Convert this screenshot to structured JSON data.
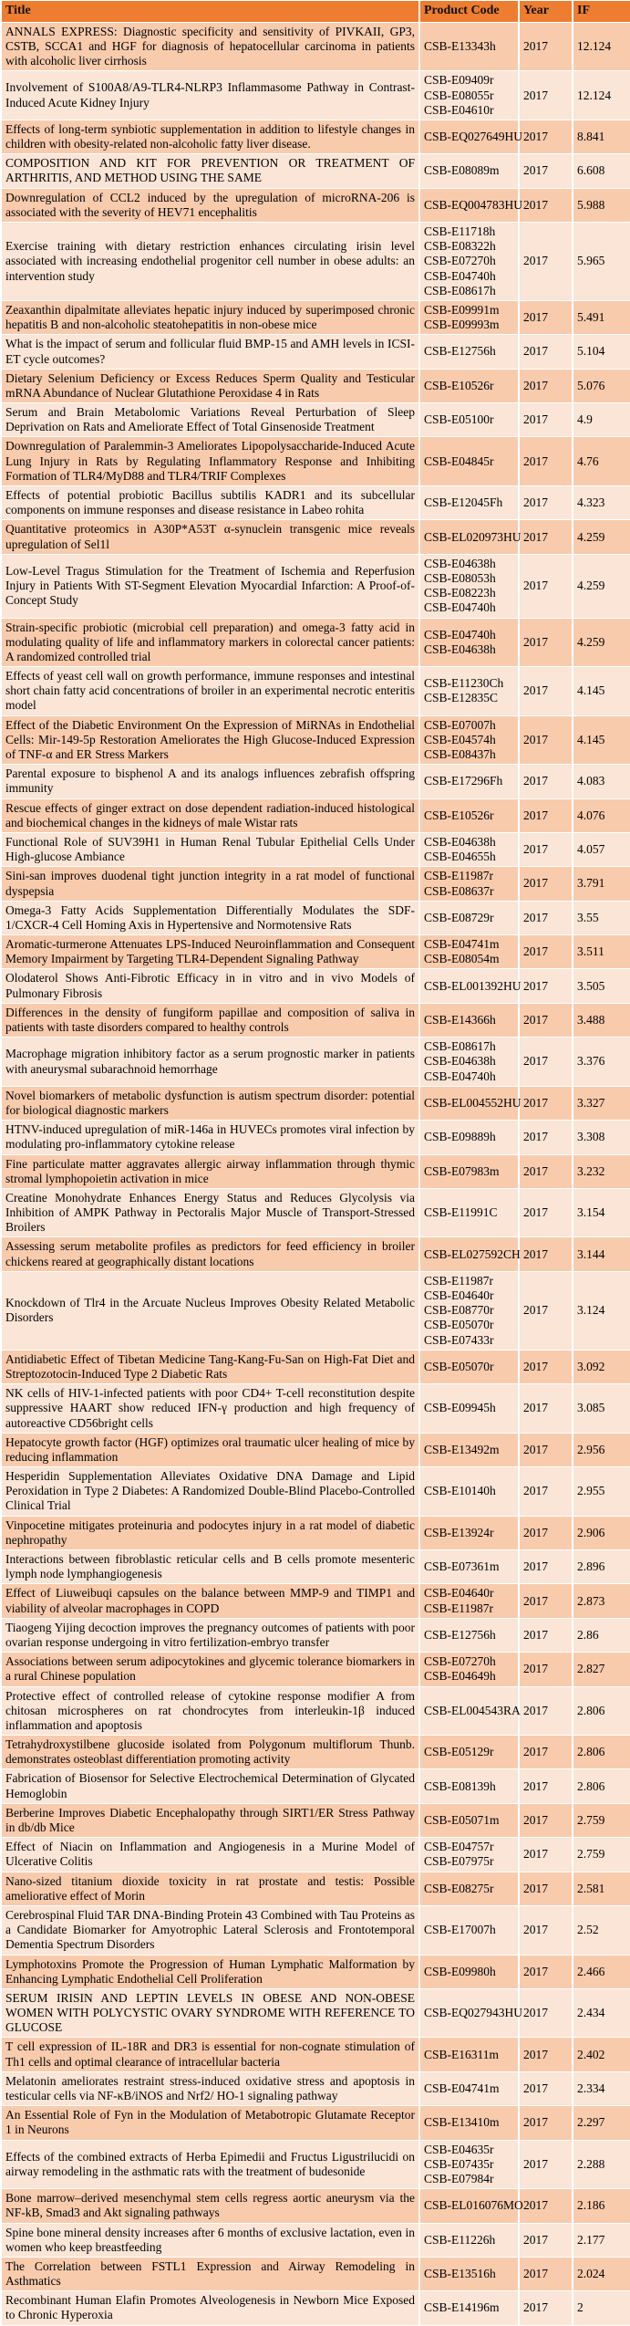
{
  "colors": {
    "header_bg": "#ED7D31",
    "row_odd_bg": "#F8CBAD",
    "row_even_bg": "#FBE5D6",
    "border": "#FFFFFF",
    "text": "#000000"
  },
  "table": {
    "columns": [
      "Title",
      "Product Code",
      "Year",
      "IF"
    ],
    "rows": [
      {
        "title": "ANNALS EXPRESS: Diagnostic specificity and sensitivity of PIVKAII, GP3, CSTB, SCCA1 and HGF for diagnosis of hepatocellular carcinoma in patients with alcoholic liver cirrhosis",
        "codes": [
          "CSB-E13343h"
        ],
        "year": "2017",
        "if": "12.124"
      },
      {
        "title": "Involvement of S100A8/A9-TLR4-NLRP3 Inflammasome Pathway in Contrast-Induced Acute Kidney Injury",
        "codes": [
          "CSB-E09409r",
          "CSB-E08055r",
          "CSB-E04610r"
        ],
        "year": "2017",
        "if": "12.124"
      },
      {
        "title": "Effects of long-term synbiotic supplementation in addition to lifestyle changes in children with obesity-related non-alcoholic fatty liver disease.",
        "codes": [
          "CSB-EQ027649HU"
        ],
        "year": "2017",
        "if": "8.841"
      },
      {
        "title": "COMPOSITION AND KIT FOR PREVENTION OR TREATMENT OF ARTHRITIS, AND METHOD USING THE SAME",
        "codes": [
          "CSB-E08089m"
        ],
        "year": "2017",
        "if": "6.608"
      },
      {
        "title": "Downregulation of CCL2 induced by the upregulation of microRNA-206 is associated with the severity of HEV71 encephalitis",
        "codes": [
          "CSB-EQ004783HU"
        ],
        "year": "2017",
        "if": "5.988"
      },
      {
        "title": "Exercise training with dietary restriction enhances circulating irisin level associated with increasing endothelial progenitor cell number in obese adults: an intervention study",
        "codes": [
          "CSB-E11718h",
          "CSB-E08322h",
          "CSB-E07270h",
          "CSB-E04740h",
          "CSB-E08617h"
        ],
        "year": "2017",
        "if": "5.965"
      },
      {
        "title": "Zeaxanthin dipalmitate alleviates hepatic injury induced by superimposed chronic hepatitis B and non-alcoholic steatohepatitis in non-obese mice",
        "codes": [
          "CSB-E09991m",
          "CSB-E09993m"
        ],
        "year": "2017",
        "if": "5.491"
      },
      {
        "title": "What is the impact of serum and follicular fluid BMP-15 and AMH levels in ICSI-ET cycle outcomes?",
        "codes": [
          "CSB-E12756h"
        ],
        "year": "2017",
        "if": "5.104"
      },
      {
        "title": "Dietary Selenium Deficiency or Excess Reduces Sperm Quality and Testicular mRNA Abundance of Nuclear Glutathione Peroxidase 4 in Rats",
        "codes": [
          "CSB-E10526r"
        ],
        "year": "2017",
        "if": "5.076"
      },
      {
        "title": "Serum and Brain Metabolomic Variations Reveal Perturbation of Sleep Deprivation on Rats and Ameliorate Effect of Total Ginsenoside Treatment",
        "codes": [
          "CSB-E05100r"
        ],
        "year": "2017",
        "if": "4.9"
      },
      {
        "title": "Downregulation of Paralemmin-3 Ameliorates Lipopolysaccharide-Induced Acute Lung Injury in Rats by Regulating Inflammatory Response and Inhibiting Formation of TLR4/MyD88 and TLR4/TRIF Complexes",
        "codes": [
          "CSB-E04845r"
        ],
        "year": "2017",
        "if": "4.76"
      },
      {
        "title": "Effects of potential probiotic Bacillus subtilis KADR1 and its subcellular components on immune responses and disease resistance in Labeo rohita",
        "codes": [
          "CSB-E12045Fh"
        ],
        "year": "2017",
        "if": "4.323"
      },
      {
        "title": "Quantitative proteomics in A30P*A53T α-synuclein transgenic mice reveals upregulation of Sel1l",
        "codes": [
          "CSB-EL020973HU"
        ],
        "year": "2017",
        "if": "4.259"
      },
      {
        "title": "Low-Level Tragus Stimulation for the Treatment of Ischemia and Reperfusion Injury in Patients With ST-Segment Elevation Myocardial Infarction: A Proof-of-Concept Study",
        "codes": [
          "CSB-E04638h",
          "CSB-E08053h",
          "CSB-E08223h",
          "CSB-E04740h"
        ],
        "year": "2017",
        "if": "4.259"
      },
      {
        "title": "Strain-specific probiotic (microbial cell preparation) and omega-3 fatty acid in modulating quality of life and inflammatory markers in colorectal cancer patients: A randomized controlled trial",
        "codes": [
          "CSB-E04740h",
          "CSB-E04638h"
        ],
        "year": "2017",
        "if": "4.259"
      },
      {
        "title": "Effects of yeast cell wall on growth performance, immune responses and intestinal short chain fatty acid concentrations of broiler in an experimental necrotic enteritis model",
        "codes": [
          "CSB-E11230Ch",
          "CSB-E12835C"
        ],
        "year": "2017",
        "if": "4.145"
      },
      {
        "title": "Effect of the Diabetic Environment On the Expression of MiRNAs in Endothelial Cells: Mir-149-5p Restoration Ameliorates the High Glucose-Induced Expression of TNF-α and ER Stress Markers",
        "codes": [
          "CSB-E07007h",
          "CSB-E04574h",
          "CSB-E08437h"
        ],
        "year": "2017",
        "if": "4.145"
      },
      {
        "title": "Parental exposure to bisphenol A and its analogs influences zebrafish offspring immunity",
        "codes": [
          "CSB-E17296Fh"
        ],
        "year": "2017",
        "if": "4.083"
      },
      {
        "title": "Rescue effects of ginger extract on dose dependent radiation-induced histological and biochemical changes in the kidneys of male Wistar rats",
        "codes": [
          "CSB-E10526r"
        ],
        "year": "2017",
        "if": "4.076"
      },
      {
        "title": "Functional Role of SUV39H1 in Human Renal Tubular Epithelial Cells Under High-glucose Ambiance",
        "codes": [
          "CSB-E04638h",
          "CSB-E04655h"
        ],
        "year": "2017",
        "if": "4.057"
      },
      {
        "title": "Sini-san improves duodenal tight junction integrity in a rat model of functional dyspepsia",
        "codes": [
          "CSB-E11987r",
          "CSB-E08637r"
        ],
        "year": "2017",
        "if": "3.791"
      },
      {
        "title": "Omega-3 Fatty Acids Supplementation Differentially Modulates the SDF-1/CXCR-4 Cell Homing Axis in Hypertensive and Normotensive Rats",
        "codes": [
          "CSB-E08729r"
        ],
        "year": "2017",
        "if": "3.55"
      },
      {
        "title": "Aromatic-turmerone Attenuates LPS-Induced Neuroinflammation and Consequent Memory Impairment by Targeting TLR4-Dependent Signaling Pathway",
        "codes": [
          "CSB-E04741m",
          "CSB-E08054m"
        ],
        "year": "2017",
        "if": "3.511"
      },
      {
        "title": "Olodaterol Shows Anti-Fibrotic Efficacy in in vitro and in vivo Models of Pulmonary Fibrosis",
        "codes": [
          "CSB-EL001392HU"
        ],
        "year": "2017",
        "if": "3.505"
      },
      {
        "title": "Differences in the density of fungiform papillae and composition of saliva in patients with taste disorders compared to healthy controls",
        "codes": [
          "CSB-E14366h"
        ],
        "year": "2017",
        "if": "3.488"
      },
      {
        "title": "Macrophage migration inhibitory factor as a serum prognostic marker in patients with aneurysmal subarachnoid hemorrhage",
        "codes": [
          "CSB-E08617h",
          "CSB-E04638h",
          "CSB-E04740h"
        ],
        "year": "2017",
        "if": "3.376"
      },
      {
        "title": "Novel biomarkers of metabolic dysfunction is autism spectrum disorder: potential for biological diagnostic markers",
        "codes": [
          "CSB-EL004552HU"
        ],
        "year": "2017",
        "if": "3.327"
      },
      {
        "title": "HTNV-induced upregulation of miR-146a in HUVECs promotes viral infection by modulating pro-inflammatory cytokine release",
        "codes": [
          "CSB-E09889h"
        ],
        "year": "2017",
        "if": "3.308"
      },
      {
        "title": "Fine particulate matter aggravates allergic airway inflammation through thymic stromal lymphopoietin activation in mice",
        "codes": [
          "CSB-E07983m"
        ],
        "year": "2017",
        "if": "3.232"
      },
      {
        "title": "Creatine Monohydrate Enhances Energy Status and Reduces Glycolysis via Inhibition of AMPK Pathway in Pectoralis Major Muscle of Transport-Stressed Broilers",
        "codes": [
          "CSB-E11991C"
        ],
        "year": "2017",
        "if": "3.154"
      },
      {
        "title": "Assessing serum metabolite profiles as predictors for feed efficiency in broiler chickens reared at geographically distant locations",
        "codes": [
          "CSB-EL027592CH"
        ],
        "year": "2017",
        "if": "3.144"
      },
      {
        "title": "Knockdown of Tlr4 in the Arcuate Nucleus Improves Obesity Related Metabolic Disorders",
        "codes": [
          "CSB-E11987r",
          "CSB-E04640r",
          "CSB-E08770r",
          "CSB-E05070r",
          "CSB-E07433r"
        ],
        "year": "2017",
        "if": "3.124"
      },
      {
        "title": "Antidiabetic Effect of Tibetan Medicine Tang-Kang-Fu-San on High-Fat Diet and Streptozotocin-Induced Type 2 Diabetic Rats",
        "codes": [
          "CSB-E05070r"
        ],
        "year": "2017",
        "if": "3.092"
      },
      {
        "title": "NK cells of HIV-1-infected patients with poor CD4+ T-cell reconstitution despite suppressive HAART show reduced IFN-γ production and high frequency of autoreactive CD56bright cells",
        "codes": [
          "CSB-E09945h"
        ],
        "year": "2017",
        "if": "3.085"
      },
      {
        "title": "Hepatocyte growth factor (HGF) optimizes oral traumatic ulcer healing of mice by reducing inflammation",
        "codes": [
          "CSB-E13492m"
        ],
        "year": "2017",
        "if": "2.956"
      },
      {
        "title": "Hesperidin Supplementation Alleviates Oxidative DNA Damage and Lipid Peroxidation in Type 2 Diabetes: A Randomized Double-Blind Placebo-Controlled Clinical Trial",
        "codes": [
          "CSB-E10140h"
        ],
        "year": "2017",
        "if": "2.955"
      },
      {
        "title": "Vinpocetine mitigates proteinuria and podocytes injury in a rat model of diabetic nephropathy",
        "codes": [
          "CSB-E13924r"
        ],
        "year": "2017",
        "if": "2.906"
      },
      {
        "title": "Interactions between fibroblastic reticular cells and B cells promote mesenteric lymph node lymphangiogenesis",
        "codes": [
          "CSB-E07361m"
        ],
        "year": "2017",
        "if": "2.896"
      },
      {
        "title": "Effect of Liuweibuqi capsules on the balance between MMP-9 and TIMP1 and viability of alveolar macrophages in COPD",
        "codes": [
          "CSB-E04640r",
          "CSB-E11987r"
        ],
        "year": "2017",
        "if": "2.873"
      },
      {
        "title": "Tiaogeng Yijing decoction improves the pregnancy outcomes of patients with poor ovarian response undergoing in vitro fertilization-embryo transfer",
        "codes": [
          "CSB-E12756h"
        ],
        "year": "2017",
        "if": "2.86"
      },
      {
        "title": "Associations between serum adipocytokines and glycemic tolerance biomarkers in a rural Chinese population",
        "codes": [
          "CSB-E07270h",
          "CSB-E04649h"
        ],
        "year": "2017",
        "if": "2.827"
      },
      {
        "title": "Protective effect of controlled release of cytokine response modifier A from chitosan microspheres on rat chondrocytes from interleukin-1β induced inflammation and apoptosis",
        "codes": [
          "CSB-EL004543RA"
        ],
        "year": "2017",
        "if": "2.806"
      },
      {
        "title": "Tetrahydroxystilbene glucoside isolated from Polygonum multiflorum Thunb. demonstrates osteoblast differentiation promoting activity",
        "codes": [
          "CSB-E05129r"
        ],
        "year": "2017",
        "if": "2.806"
      },
      {
        "title": "Fabrication of Biosensor for Selective Electrochemical Determination of Glycated Hemoglobin",
        "codes": [
          "CSB-E08139h"
        ],
        "year": "2017",
        "if": "2.806"
      },
      {
        "title": "Berberine Improves Diabetic Encephalopathy through SIRT1/ER Stress Pathway in db/db Mice",
        "codes": [
          "CSB-E05071m"
        ],
        "year": "2017",
        "if": "2.759"
      },
      {
        "title": "Effect of Niacin on Inflammation and Angiogenesis in a Murine Model of Ulcerative Colitis",
        "codes": [
          "CSB-E04757r",
          "CSB-E07975r"
        ],
        "year": "2017",
        "if": "2.759"
      },
      {
        "title": "Nano-sized titanium dioxide toxicity in rat prostate and testis: Possible ameliorative effect of Morin",
        "codes": [
          "CSB-E08275r"
        ],
        "year": "2017",
        "if": "2.581"
      },
      {
        "title": "Cerebrospinal Fluid TAR DNA-Binding Protein 43 Combined with Tau Proteins as a Candidate Biomarker for Amyotrophic Lateral Sclerosis and Frontotemporal Dementia Spectrum Disorders",
        "codes": [
          "CSB-E17007h"
        ],
        "year": "2017",
        "if": "2.52"
      },
      {
        "title": "Lymphotoxins Promote the Progression of Human Lymphatic Malformation by Enhancing Lymphatic Endothelial Cell Proliferation",
        "codes": [
          "CSB-E09980h"
        ],
        "year": "2017",
        "if": "2.466"
      },
      {
        "title": "SERUM IRISIN AND LEPTIN LEVELS IN OBESE AND NON-OBESE WOMEN WITH POLYCYSTIC OVARY SYNDROME WITH REFERENCE TO GLUCOSE",
        "codes": [
          "CSB-EQ027943HU"
        ],
        "year": "2017",
        "if": "2.434"
      },
      {
        "title": "T cell expression of IL-18R and DR3 is essential for non-cognate stimulation of Th1 cells and optimal clearance of intracellular bacteria",
        "codes": [
          "CSB-E16311m"
        ],
        "year": "2017",
        "if": "2.402"
      },
      {
        "title": "Melatonin ameliorates restraint stress-induced oxidative stress and apoptosis in testicular cells via NF-κB/iNOS and Nrf2/ HO-1 signaling pathway",
        "codes": [
          "CSB-E04741m"
        ],
        "year": "2017",
        "if": "2.334"
      },
      {
        "title": "An Essential Role of Fyn in the Modulation of Metabotropic Glutamate Receptor 1 in Neurons",
        "codes": [
          "CSB-E13410m"
        ],
        "year": "2017",
        "if": "2.297"
      },
      {
        "title": "Effects of the combined extracts of Herba Epimedii and Fructus Ligustrilucidi on airway remodeling in the asthmatic rats with the treatment of budesonide",
        "codes": [
          "CSB-E04635r",
          "CSB-E07435r",
          "CSB-E07984r"
        ],
        "year": "2017",
        "if": "2.288"
      },
      {
        "title": "Bone marrow–derived mesenchymal stem cells regress aortic aneurysm via the NF-kB, Smad3 and Akt signaling pathways",
        "codes": [
          "CSB-EL016076MO"
        ],
        "year": "2017",
        "if": "2.186"
      },
      {
        "title": "Spine bone mineral density increases after 6 months of exclusive lactation, even in women who keep breastfeeding",
        "codes": [
          "CSB-E11226h"
        ],
        "year": "2017",
        "if": "2.177"
      },
      {
        "title": "The Correlation between FSTL1 Expression and Airway Remodeling in Asthmatics",
        "codes": [
          "CSB-E13516h"
        ],
        "year": "2017",
        "if": "2.024"
      },
      {
        "title": "Recombinant Human Elafin Promotes Alveologenesis in Newborn Mice Exposed to Chronic Hyperoxia",
        "codes": [
          "CSB-E14196m"
        ],
        "year": "2017",
        "if": "2"
      }
    ]
  }
}
